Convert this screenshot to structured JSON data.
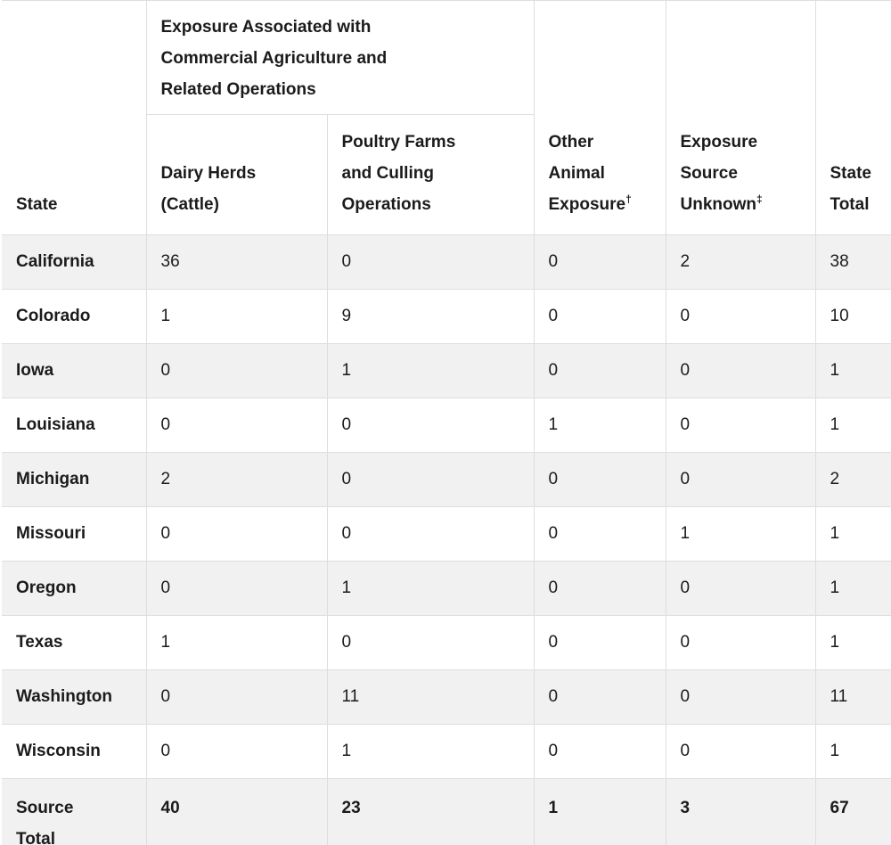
{
  "chart_data": {
    "type": "table",
    "group_header": "Exposure Associated with Commercial Agriculture and Related Operations",
    "columns": [
      {
        "id": "state",
        "label": "State"
      },
      {
        "id": "dairy",
        "label": "Dairy Herds (Cattle)"
      },
      {
        "id": "poultry",
        "label": "Poultry Farms and Culling Operations"
      },
      {
        "id": "other",
        "label": "Other Animal Exposure",
        "sup": "†"
      },
      {
        "id": "unknown",
        "label": "Exposure Source Unknown",
        "sup": "‡"
      },
      {
        "id": "total",
        "label": "State Total"
      }
    ],
    "rows": [
      {
        "state": "California",
        "dairy": "36",
        "poultry": "0",
        "other": "0",
        "unknown": "2",
        "total": "38"
      },
      {
        "state": "Colorado",
        "dairy": "1",
        "poultry": "9",
        "other": "0",
        "unknown": "0",
        "total": "10"
      },
      {
        "state": "Iowa",
        "dairy": "0",
        "poultry": "1",
        "other": "0",
        "unknown": "0",
        "total": "1"
      },
      {
        "state": "Louisiana",
        "dairy": "0",
        "poultry": "0",
        "other": "1",
        "unknown": "0",
        "total": "1"
      },
      {
        "state": "Michigan",
        "dairy": "2",
        "poultry": "0",
        "other": "0",
        "unknown": "0",
        "total": "2"
      },
      {
        "state": "Missouri",
        "dairy": "0",
        "poultry": "0",
        "other": "0",
        "unknown": "1",
        "total": "1"
      },
      {
        "state": "Oregon",
        "dairy": "0",
        "poultry": "1",
        "other": "0",
        "unknown": "0",
        "total": "1"
      },
      {
        "state": "Texas",
        "dairy": "1",
        "poultry": "0",
        "other": "0",
        "unknown": "0",
        "total": "1"
      },
      {
        "state": "Washington",
        "dairy": "0",
        "poultry": "11",
        "other": "0",
        "unknown": "0",
        "total": "11"
      },
      {
        "state": "Wisconsin",
        "dairy": "0",
        "poultry": "1",
        "other": "0",
        "unknown": "0",
        "total": "1"
      }
    ],
    "footer": {
      "state": "Source Total",
      "dairy": "40",
      "poultry": "23",
      "other": "1",
      "unknown": "3",
      "total": "67"
    },
    "layout": {
      "striped": true,
      "stripe_color": "#f1f1f1",
      "border_color": "#dedede",
      "text_color": "#1b1b1b"
    }
  }
}
